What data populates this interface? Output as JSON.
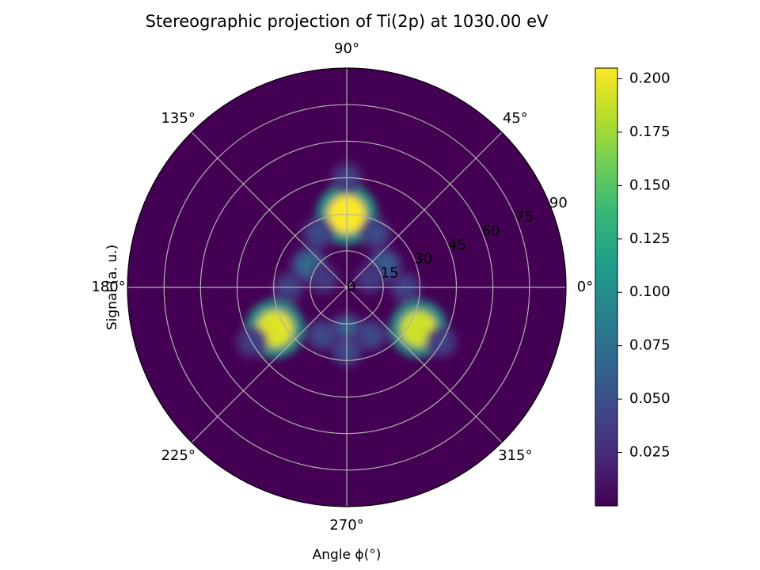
{
  "chart_data": {
    "type": "heatmap",
    "projection": "polar (stereographic)",
    "title": "Stereographic projection of Ti(2p) at 1030.00 eV",
    "xlabel": "Angle ϕ(°)",
    "ylabel": "Signal (a. u.)",
    "angular_ticks": [
      "0°",
      "45°",
      "90°",
      "135°",
      "180°",
      "225°",
      "270°",
      "315°"
    ],
    "radial_ticks": [
      "0",
      "15",
      "30",
      "45",
      "60",
      "75",
      "90"
    ],
    "radial_range": [
      0,
      90
    ],
    "grid": true,
    "colormap": "viridis",
    "colorbar": {
      "range": [
        0.0,
        0.205
      ],
      "ticks": [
        "0.025",
        "0.050",
        "0.075",
        "0.100",
        "0.125",
        "0.150",
        "0.175",
        "0.200"
      ]
    },
    "features": [
      {
        "phi": 90,
        "theta": 30,
        "value": 0.205
      },
      {
        "phi": 210,
        "theta": 34,
        "value": 0.195
      },
      {
        "phi": 330,
        "theta": 34,
        "value": 0.19
      },
      {
        "phi": 90,
        "theta": 45,
        "value": 0.04
      },
      {
        "phi": 210,
        "theta": 45,
        "value": 0.04
      },
      {
        "phi": 330,
        "theta": 45,
        "value": 0.04
      },
      {
        "phi": 118,
        "theta": 25,
        "value": 0.045
      },
      {
        "phi": 62,
        "theta": 25,
        "value": 0.045
      },
      {
        "phi": 150,
        "theta": 18,
        "value": 0.07
      },
      {
        "phi": 270,
        "theta": 18,
        "value": 0.065
      },
      {
        "phi": 30,
        "theta": 18,
        "value": 0.06
      },
      {
        "phi": 180,
        "theta": 24,
        "value": 0.04
      },
      {
        "phi": 0,
        "theta": 24,
        "value": 0.04
      },
      {
        "phi": 243,
        "theta": 22,
        "value": 0.045
      },
      {
        "phi": 297,
        "theta": 22,
        "value": 0.045
      },
      {
        "phi": 160,
        "theta": 10,
        "value": 0.035
      },
      {
        "phi": 20,
        "theta": 10,
        "value": 0.035
      },
      {
        "phi": 270,
        "theta": 26,
        "value": 0.045
      }
    ]
  }
}
